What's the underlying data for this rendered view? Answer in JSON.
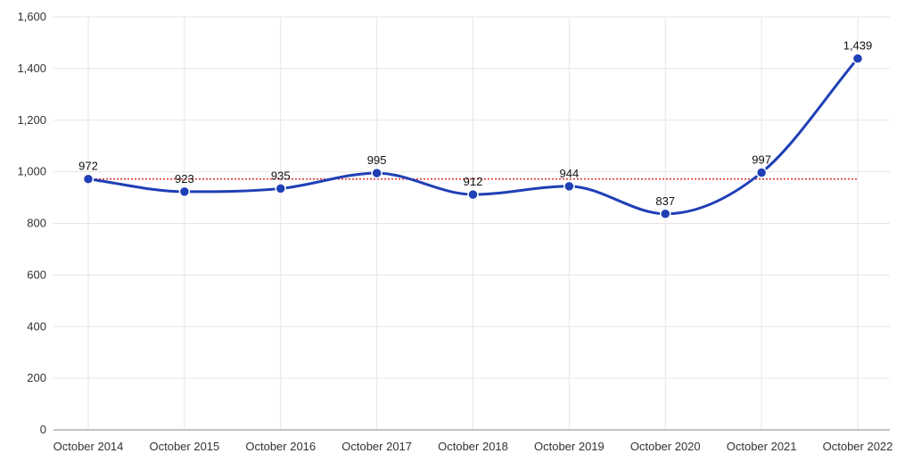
{
  "chart_data": {
    "type": "line",
    "categories": [
      "October 2014",
      "October 2015",
      "October 2016",
      "October 2017",
      "October 2018",
      "October 2019",
      "October 2020",
      "October 2021",
      "October 2022"
    ],
    "series": [
      {
        "values": [
          972,
          923,
          935,
          995,
          912,
          944,
          837,
          997,
          1439
        ]
      }
    ],
    "data_labels": [
      "972",
      "923",
      "935",
      "995",
      "912",
      "944",
      "837",
      "997",
      "1,439"
    ],
    "reference_line": {
      "value": 972
    },
    "ylim": [
      0,
      1600
    ],
    "yticks": [
      0,
      200,
      400,
      600,
      800,
      1000,
      1200,
      1400,
      1600
    ],
    "ytick_labels": [
      "0",
      "200",
      "400",
      "600",
      "800",
      "1,000",
      "1,200",
      "1,400",
      "1,600"
    ],
    "grid": true,
    "colors": {
      "line": "#1f3fb5",
      "point": "#1f3fb5",
      "reference": "#e03030",
      "grid": "#e6e6e6",
      "axis": "#888888"
    }
  }
}
